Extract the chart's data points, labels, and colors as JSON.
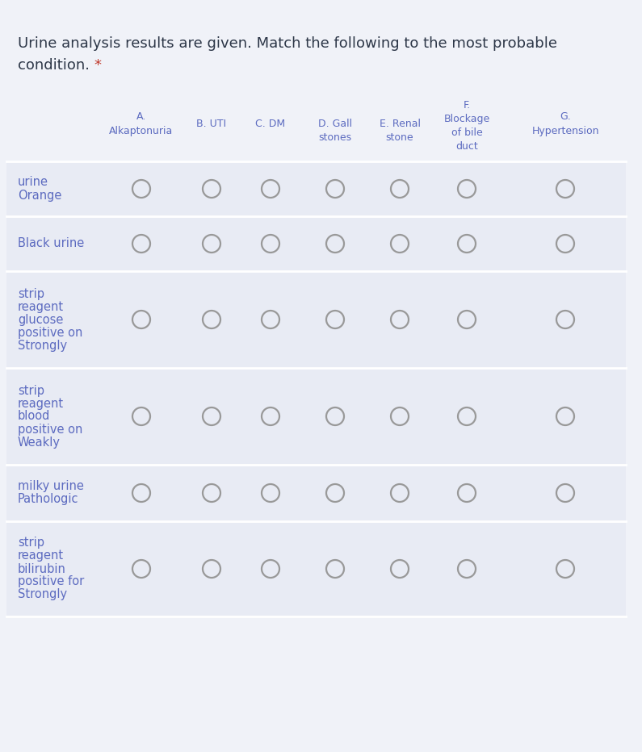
{
  "title_line1": "Urine analysis results are given. Match the following to the most probable",
  "title_line2": "condition.",
  "title_asterisk": "*",
  "bg_color": "#f0f2f8",
  "card_bg": "#e8ebf4",
  "white_sep": "#ffffff",
  "text_color": "#4a5568",
  "row_label_color": "#5c6bc0",
  "col_header_color": "#5c6bc0",
  "title_color": "#2d3748",
  "asterisk_color": "#c0392b",
  "circle_edge_color": "#999999",
  "circle_lw": 1.6,
  "col_headers": [
    [
      "A.",
      "Alkaptonuria"
    ],
    [
      "B. UTI"
    ],
    [
      "C. DM"
    ],
    [
      "D. Gall",
      "stones"
    ],
    [
      "E. Renal",
      "stone"
    ],
    [
      "F.",
      "Blockage",
      "of bile",
      "duct"
    ],
    [
      "G.",
      "Hypertension"
    ]
  ],
  "row_labels": [
    [
      "Orange",
      "urine"
    ],
    [
      "Black urine"
    ],
    [
      "Strongly",
      "positive on",
      "glucose",
      "reagent",
      "strip"
    ],
    [
      "Weakly",
      "positive on",
      "blood",
      "reagent",
      "strip"
    ],
    [
      "Pathologic",
      "milky urine"
    ],
    [
      "Strongly",
      "positive for",
      "bilirubin",
      "reagent",
      "strip"
    ]
  ],
  "n_cols": 7,
  "n_rows": 6,
  "fig_width": 7.95,
  "fig_height": 9.32,
  "dpi": 100
}
